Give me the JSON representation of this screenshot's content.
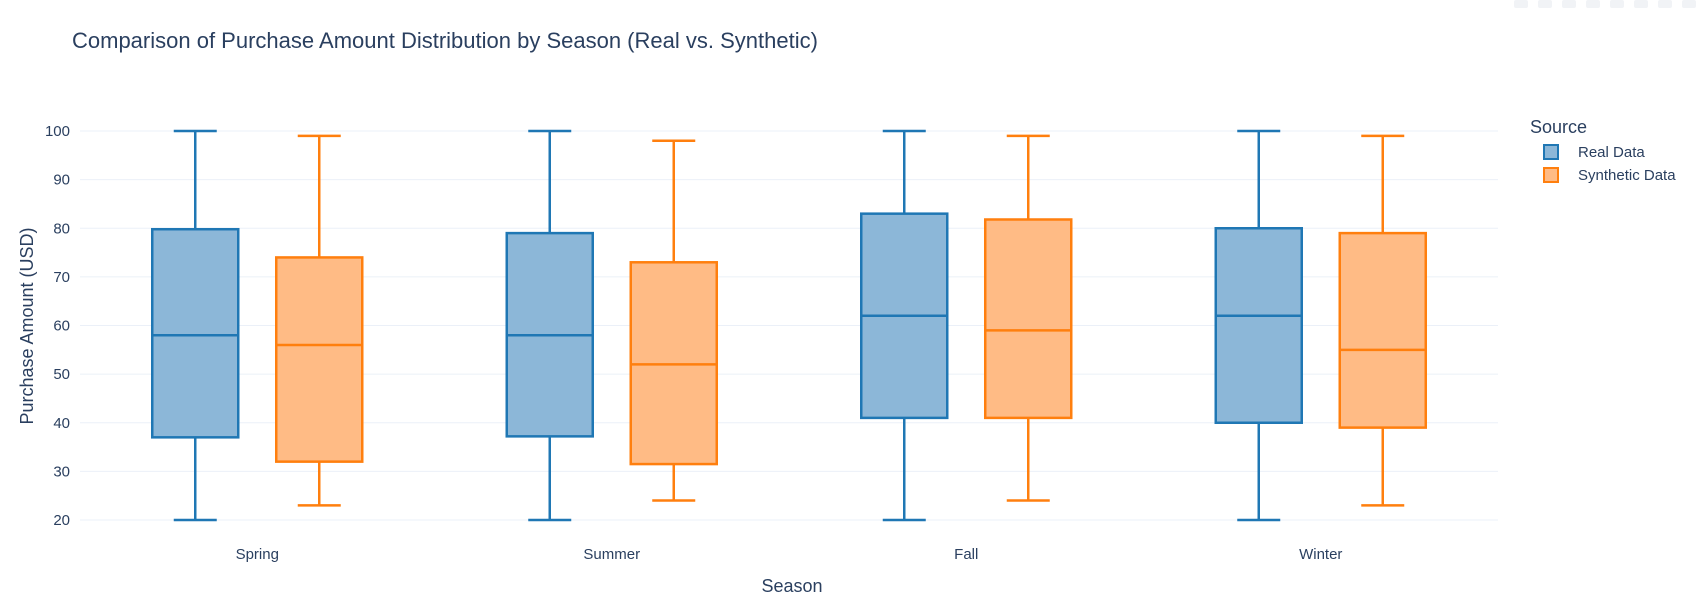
{
  "chart_data": {
    "type": "box",
    "title": "Comparison of Purchase Amount Distribution by Season (Real vs. Synthetic)",
    "xlabel": "Season",
    "ylabel": "Purchase Amount (USD)",
    "ylim": [
      16,
      104
    ],
    "yticks": [
      20,
      30,
      40,
      50,
      60,
      70,
      80,
      90,
      100
    ],
    "grid": true,
    "legend": {
      "title": "Source",
      "placement": "right"
    },
    "categories": [
      "Spring",
      "Summer",
      "Fall",
      "Winter"
    ],
    "series": [
      {
        "name": "Real Data",
        "color": "#1f77b4",
        "fill": "#8cb7d8",
        "boxes": [
          {
            "min": 20,
            "q1": 37,
            "median": 58,
            "q3": 79.8,
            "max": 100
          },
          {
            "min": 20,
            "q1": 37.2,
            "median": 58,
            "q3": 79,
            "max": 100
          },
          {
            "min": 20,
            "q1": 41,
            "median": 62,
            "q3": 83,
            "max": 100
          },
          {
            "min": 20,
            "q1": 40,
            "median": 62,
            "q3": 80,
            "max": 100
          }
        ]
      },
      {
        "name": "Synthetic Data",
        "color": "#ff7f0e",
        "fill": "#ffbb85",
        "boxes": [
          {
            "min": 23,
            "q1": 32,
            "median": 56,
            "q3": 74,
            "max": 99
          },
          {
            "min": 24,
            "q1": 31.5,
            "median": 52,
            "q3": 73,
            "max": 98
          },
          {
            "min": 24,
            "q1": 41,
            "median": 59,
            "q3": 81.8,
            "max": 99
          },
          {
            "min": 23,
            "q1": 39,
            "median": 55,
            "q3": 79,
            "max": 99
          }
        ]
      }
    ]
  }
}
